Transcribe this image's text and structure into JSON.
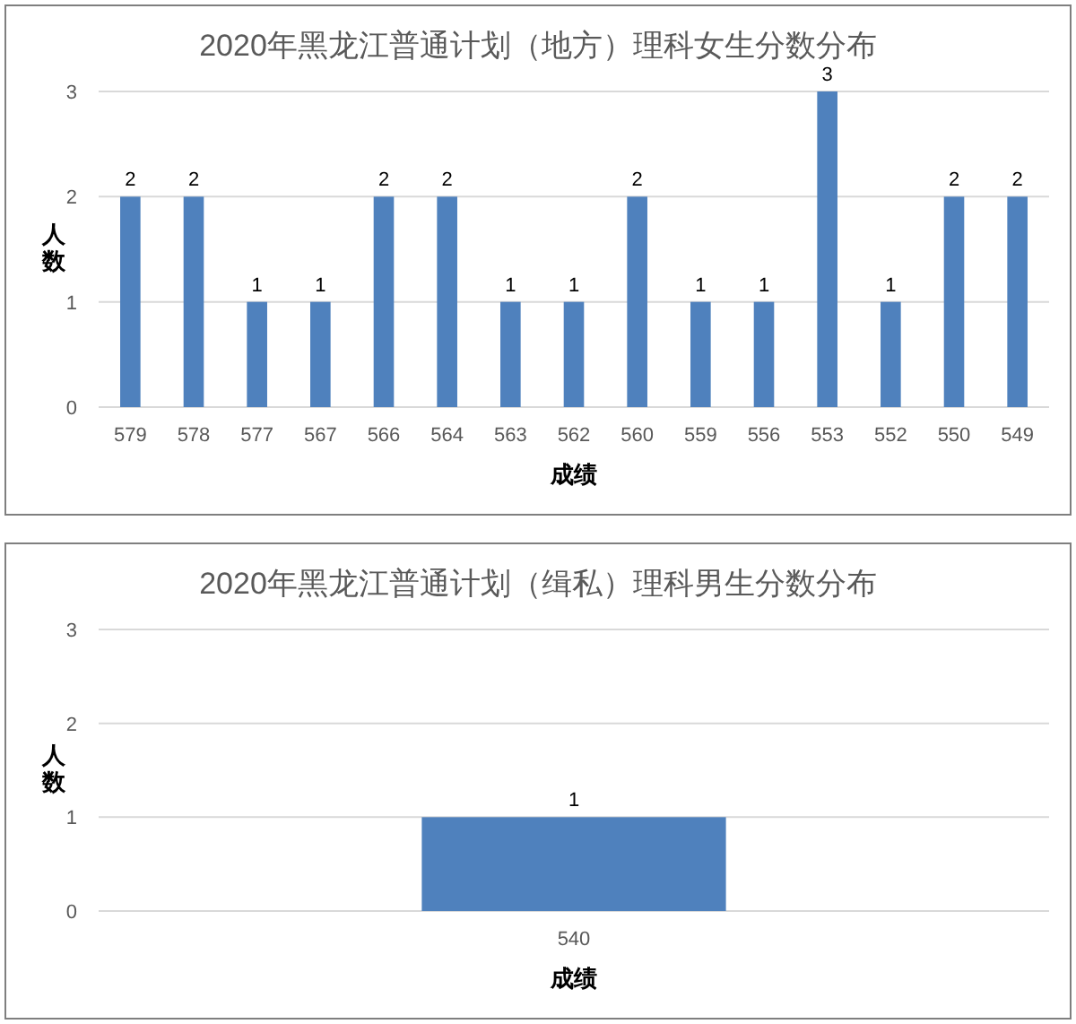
{
  "chart_data": [
    {
      "type": "bar",
      "title": "2020年黑龙江普通计划（地方）理科女生分数分布",
      "xlabel": "成绩",
      "ylabel": "人数",
      "categories": [
        "579",
        "578",
        "577",
        "567",
        "566",
        "564",
        "563",
        "562",
        "560",
        "559",
        "556",
        "553",
        "552",
        "550",
        "549"
      ],
      "values": [
        2,
        2,
        1,
        1,
        2,
        2,
        1,
        1,
        2,
        1,
        1,
        3,
        1,
        2,
        2
      ],
      "color": "#4f81bd",
      "ylim": [
        0,
        3
      ],
      "yticks": [
        0,
        1,
        2,
        3
      ],
      "grid": "y",
      "data_labels": true
    },
    {
      "type": "bar",
      "title": "2020年黑龙江普通计划（缉私）理科男生分数分布",
      "xlabel": "成绩",
      "ylabel": "人数",
      "categories": [
        "540"
      ],
      "values": [
        1
      ],
      "color": "#4f81bd",
      "ylim": [
        0,
        3
      ],
      "yticks": [
        0,
        1,
        2,
        3
      ],
      "grid": "y",
      "data_labels": true
    }
  ]
}
